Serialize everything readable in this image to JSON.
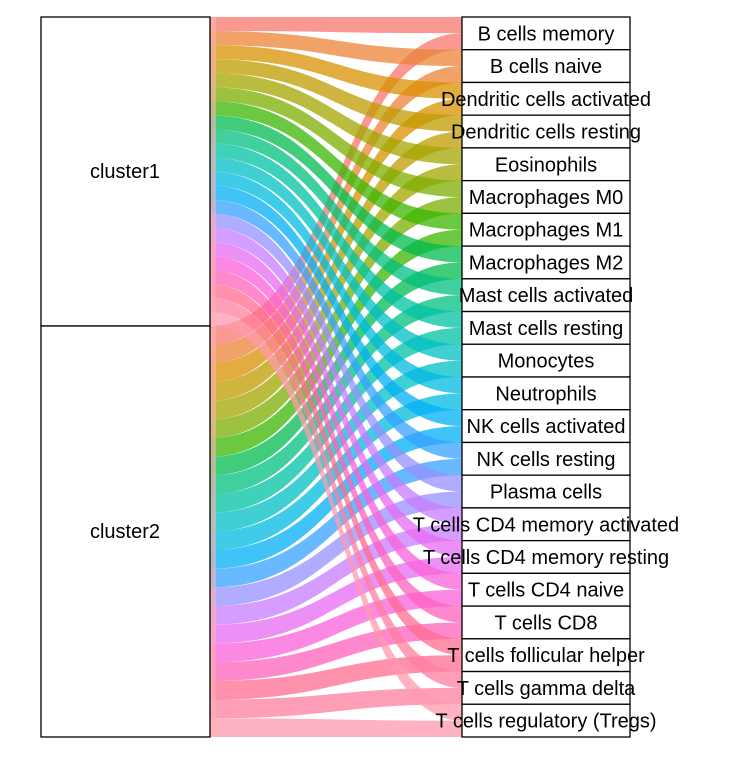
{
  "diagram": {
    "type": "alluvial",
    "left_axis": {
      "strata": [
        {
          "label": "cluster1",
          "weight": 308
        },
        {
          "label": "cluster2",
          "weight": 386
        }
      ]
    },
    "right_axis": {
      "strata": [
        {
          "label": "B cells memory",
          "weight": 1
        },
        {
          "label": "B cells naive",
          "weight": 1
        },
        {
          "label": "Dendritic cells activated",
          "weight": 1
        },
        {
          "label": "Dendritic cells resting",
          "weight": 1
        },
        {
          "label": "Eosinophils",
          "weight": 1
        },
        {
          "label": "Macrophages M0",
          "weight": 1
        },
        {
          "label": "Macrophages M1",
          "weight": 1
        },
        {
          "label": "Macrophages M2",
          "weight": 1
        },
        {
          "label": "Mast cells activated",
          "weight": 1
        },
        {
          "label": "Mast cells resting",
          "weight": 1
        },
        {
          "label": "Monocytes",
          "weight": 1
        },
        {
          "label": "Neutrophils",
          "weight": 1
        },
        {
          "label": "NK cells activated",
          "weight": 1
        },
        {
          "label": "NK cells resting",
          "weight": 1
        },
        {
          "label": "Plasma cells",
          "weight": 1
        },
        {
          "label": "T cells CD4 memory activated",
          "weight": 1
        },
        {
          "label": "T cells CD4 memory resting",
          "weight": 1
        },
        {
          "label": "T cells CD4 naive",
          "weight": 1
        },
        {
          "label": "T cells CD8",
          "weight": 1
        },
        {
          "label": "T cells follicular helper",
          "weight": 1
        },
        {
          "label": "T cells gamma delta",
          "weight": 1
        },
        {
          "label": "T cells regulatory (Tregs)",
          "weight": 1
        }
      ]
    },
    "flow_palette": [
      "#F8766D",
      "#EB8335",
      "#D89000",
      "#C09B00",
      "#A3A500",
      "#7CAE00",
      "#39B600",
      "#00BB4E",
      "#00BF7D",
      "#00C1A3",
      "#00BFC4",
      "#00BAE0",
      "#00B0F6",
      "#35A2FF",
      "#9590FF",
      "#C77CFF",
      "#E76BF3",
      "#FA62DB",
      "#FF62BC",
      "#FF6C91",
      "#FF7F9F",
      "#FF9AAE"
    ]
  }
}
